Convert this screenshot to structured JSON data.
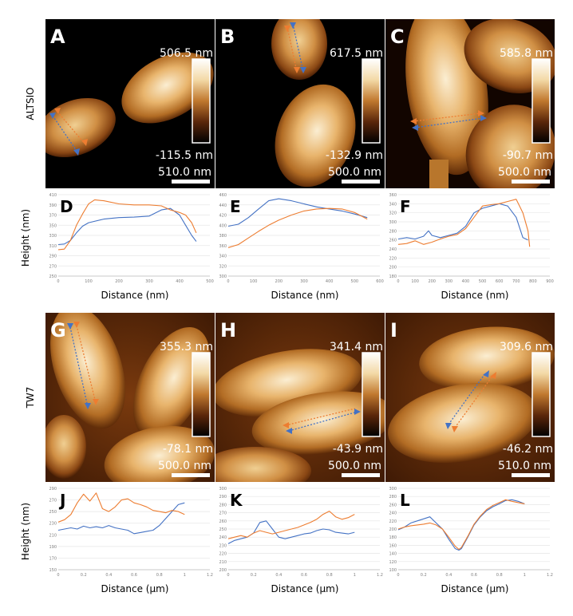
{
  "row_labels": [
    "ALTSIO",
    "TW7"
  ],
  "y_axis_label": "Height (nm)",
  "colors": {
    "blue": "#4472C4",
    "orange": "#ED7D31",
    "grid": "#e6e6e6",
    "axis": "#bfbfbf"
  },
  "afm_panels": [
    {
      "letter": "A",
      "max": "506.5 nm",
      "min": "-115.5 nm",
      "scale": "510.0 nm"
    },
    {
      "letter": "B",
      "max": "617.5 nm",
      "min": "-132.9 nm",
      "scale": "500.0 nm"
    },
    {
      "letter": "C",
      "max": "585.8 nm",
      "min": "-90.7 nm",
      "scale": "500.0 nm"
    },
    {
      "letter": "G",
      "max": "355.3 nm",
      "min": "-78.1 nm",
      "scale": "500.0 nm"
    },
    {
      "letter": "H",
      "max": "341.4 nm",
      "min": "-43.9 nm",
      "scale": "500.0 nm"
    },
    {
      "letter": "I",
      "max": "309.6 nm",
      "min": "-46.2 nm",
      "scale": "510.0 nm"
    }
  ],
  "chart_data": [
    {
      "type": "line",
      "letter": "D",
      "xlabel": "Distance (nm)",
      "ylabel": "Height (nm)",
      "xlim": [
        0,
        500
      ],
      "ylim": [
        250,
        410
      ],
      "xticks": [
        0,
        100,
        200,
        300,
        400,
        500
      ],
      "yticks": [
        250,
        270,
        290,
        310,
        330,
        350,
        370,
        390,
        410
      ],
      "series": [
        {
          "color": "blue",
          "x": [
            0,
            20,
            40,
            60,
            80,
            100,
            150,
            200,
            250,
            300,
            340,
            370,
            400,
            420,
            440,
            455
          ],
          "y": [
            312,
            313,
            320,
            335,
            348,
            355,
            362,
            365,
            366,
            368,
            380,
            383,
            370,
            350,
            330,
            318
          ]
        },
        {
          "color": "orange",
          "x": [
            0,
            20,
            40,
            60,
            80,
            100,
            120,
            150,
            200,
            250,
            300,
            340,
            370,
            400,
            420,
            440,
            455
          ],
          "y": [
            302,
            303,
            320,
            350,
            372,
            392,
            400,
            398,
            392,
            390,
            390,
            388,
            380,
            375,
            370,
            355,
            335
          ]
        }
      ]
    },
    {
      "type": "line",
      "letter": "E",
      "xlabel": "Distance (nm)",
      "ylabel": "Height (nm)",
      "xlim": [
        0,
        600
      ],
      "ylim": [
        300,
        460
      ],
      "xticks": [
        0,
        100,
        200,
        300,
        400,
        500,
        600
      ],
      "yticks": [
        300,
        320,
        340,
        360,
        380,
        400,
        420,
        440,
        460
      ],
      "series": [
        {
          "color": "blue",
          "x": [
            0,
            40,
            80,
            120,
            160,
            200,
            250,
            300,
            350,
            400,
            450,
            500,
            550
          ],
          "y": [
            398,
            402,
            415,
            432,
            448,
            452,
            448,
            442,
            436,
            432,
            428,
            422,
            415
          ]
        },
        {
          "color": "orange",
          "x": [
            0,
            40,
            80,
            120,
            160,
            200,
            250,
            300,
            350,
            400,
            450,
            500,
            550
          ],
          "y": [
            356,
            362,
            375,
            388,
            400,
            410,
            420,
            428,
            432,
            433,
            432,
            425,
            412
          ]
        }
      ]
    },
    {
      "type": "line",
      "letter": "F",
      "xlabel": "Distance (nm)",
      "ylabel": "Height (nm)",
      "xlim": [
        0,
        900
      ],
      "ylim": [
        180,
        360
      ],
      "xticks": [
        0,
        100,
        200,
        300,
        400,
        500,
        600,
        700,
        800,
        900
      ],
      "yticks": [
        180,
        200,
        220,
        240,
        260,
        280,
        300,
        320,
        340,
        360
      ],
      "series": [
        {
          "color": "blue",
          "x": [
            0,
            50,
            100,
            150,
            180,
            200,
            250,
            300,
            350,
            400,
            450,
            500,
            550,
            600,
            650,
            700,
            740,
            770
          ],
          "y": [
            262,
            265,
            262,
            268,
            280,
            270,
            265,
            270,
            275,
            290,
            320,
            330,
            335,
            340,
            335,
            310,
            265,
            260
          ]
        },
        {
          "color": "orange",
          "x": [
            0,
            50,
            100,
            150,
            200,
            250,
            300,
            350,
            400,
            450,
            500,
            550,
            600,
            650,
            700,
            740,
            770,
            780
          ],
          "y": [
            250,
            252,
            258,
            250,
            255,
            262,
            268,
            272,
            285,
            310,
            335,
            338,
            340,
            345,
            350,
            320,
            280,
            245
          ]
        }
      ]
    },
    {
      "type": "line",
      "letter": "J",
      "xlabel": "Distance (µm)",
      "ylabel": "Height (nm)",
      "xlim": [
        0,
        1.2
      ],
      "ylim": [
        150,
        290
      ],
      "xticks": [
        0,
        0.2,
        0.4,
        0.6,
        0.8,
        1,
        1.2
      ],
      "yticks": [
        150,
        170,
        190,
        210,
        230,
        250,
        270,
        290
      ],
      "series": [
        {
          "color": "blue",
          "x": [
            0,
            0.05,
            0.1,
            0.15,
            0.2,
            0.25,
            0.3,
            0.35,
            0.4,
            0.45,
            0.5,
            0.55,
            0.6,
            0.65,
            0.7,
            0.75,
            0.8,
            0.85,
            0.9,
            0.95,
            1.0
          ],
          "y": [
            218,
            220,
            222,
            220,
            225,
            222,
            224,
            222,
            226,
            222,
            220,
            218,
            212,
            214,
            216,
            218,
            226,
            238,
            250,
            262,
            265
          ]
        },
        {
          "color": "orange",
          "x": [
            0,
            0.05,
            0.1,
            0.15,
            0.2,
            0.25,
            0.3,
            0.35,
            0.4,
            0.45,
            0.5,
            0.55,
            0.6,
            0.65,
            0.7,
            0.75,
            0.8,
            0.85,
            0.9,
            0.95,
            1.0
          ],
          "y": [
            232,
            236,
            245,
            265,
            280,
            268,
            282,
            255,
            250,
            258,
            270,
            272,
            265,
            262,
            258,
            252,
            250,
            248,
            252,
            250,
            245
          ]
        }
      ]
    },
    {
      "type": "line",
      "letter": "K",
      "xlabel": "Distance (µm)",
      "ylabel": "Height (nm)",
      "xlim": [
        0,
        1.2
      ],
      "ylim": [
        200,
        300
      ],
      "xticks": [
        0,
        0.2,
        0.4,
        0.6,
        0.8,
        1,
        1.2
      ],
      "yticks": [
        200,
        210,
        220,
        230,
        240,
        250,
        260,
        270,
        280,
        290,
        300
      ],
      "series": [
        {
          "color": "blue",
          "x": [
            0,
            0.05,
            0.1,
            0.15,
            0.2,
            0.25,
            0.3,
            0.35,
            0.4,
            0.45,
            0.5,
            0.55,
            0.6,
            0.65,
            0.7,
            0.75,
            0.8,
            0.85,
            0.9,
            0.95,
            1.0
          ],
          "y": [
            232,
            236,
            238,
            240,
            245,
            258,
            260,
            250,
            240,
            238,
            240,
            242,
            244,
            245,
            248,
            250,
            249,
            246,
            245,
            244,
            246
          ]
        },
        {
          "color": "orange",
          "x": [
            0,
            0.05,
            0.1,
            0.15,
            0.2,
            0.25,
            0.3,
            0.35,
            0.4,
            0.45,
            0.5,
            0.55,
            0.6,
            0.65,
            0.7,
            0.75,
            0.8,
            0.85,
            0.9,
            0.95,
            1.0
          ],
          "y": [
            238,
            240,
            242,
            240,
            245,
            248,
            246,
            244,
            246,
            248,
            250,
            252,
            255,
            258,
            262,
            268,
            272,
            265,
            262,
            264,
            268
          ]
        }
      ]
    },
    {
      "type": "line",
      "letter": "L",
      "xlabel": "Distance (µm)",
      "ylabel": "Height (nm)",
      "xlim": [
        0,
        1.2
      ],
      "ylim": [
        100,
        300
      ],
      "xticks": [
        0,
        0.2,
        0.4,
        0.6,
        0.8,
        1,
        1.2
      ],
      "yticks": [
        100,
        120,
        140,
        160,
        180,
        200,
        220,
        240,
        260,
        280,
        300
      ],
      "series": [
        {
          "color": "blue",
          "x": [
            0,
            0.05,
            0.1,
            0.15,
            0.2,
            0.25,
            0.3,
            0.35,
            0.4,
            0.45,
            0.48,
            0.5,
            0.55,
            0.6,
            0.65,
            0.7,
            0.75,
            0.8,
            0.85,
            0.9,
            0.95,
            1.0
          ],
          "y": [
            198,
            205,
            215,
            220,
            225,
            230,
            215,
            200,
            175,
            152,
            148,
            152,
            180,
            210,
            230,
            245,
            255,
            262,
            270,
            272,
            268,
            262
          ]
        },
        {
          "color": "orange",
          "x": [
            0,
            0.05,
            0.1,
            0.15,
            0.2,
            0.25,
            0.3,
            0.35,
            0.4,
            0.45,
            0.48,
            0.5,
            0.55,
            0.6,
            0.65,
            0.7,
            0.75,
            0.8,
            0.85,
            0.9,
            0.95,
            1.0
          ],
          "y": [
            200,
            205,
            208,
            210,
            212,
            215,
            210,
            200,
            180,
            158,
            150,
            155,
            182,
            212,
            232,
            248,
            258,
            265,
            272,
            268,
            265,
            262
          ]
        }
      ]
    }
  ]
}
